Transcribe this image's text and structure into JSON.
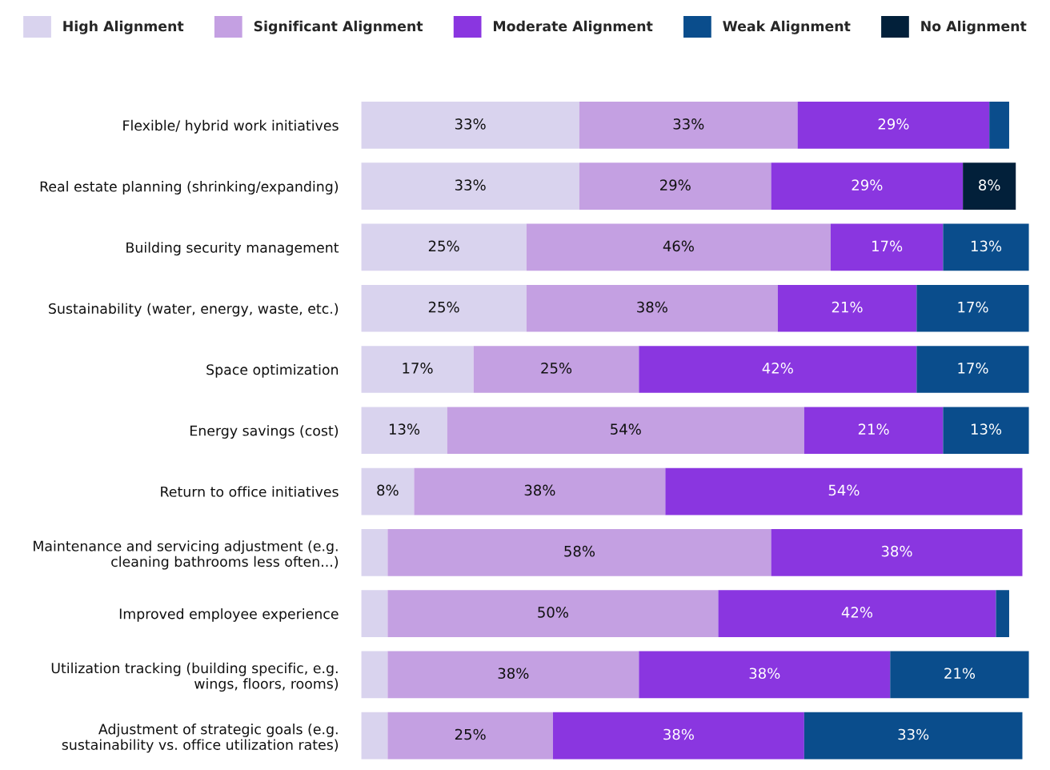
{
  "chart_data": {
    "type": "bar",
    "orientation": "horizontal",
    "stacked": true,
    "legend": "top",
    "grid": false,
    "categories": [
      "Flexible/ hybrid work initiatives",
      "Real estate planning (shrinking/expanding)",
      "Building security management",
      "Sustainability (water, energy, waste, etc.)",
      "Space optimization",
      "Energy savings (cost)",
      "Return to office initiatives",
      "Maintenance and servicing adjustment (e.g.\ncleaning bathrooms less often...)",
      "Improved employee experience",
      "Utilization tracking (building specific, e.g.\nwings, floors, rooms)",
      "Adjustment of strategic goals (e.g.\nsustainability vs. office utilization rates)"
    ],
    "series": [
      {
        "name": "High Alignment",
        "color": "#d9d3ee",
        "values": [
          33,
          33,
          25,
          25,
          17,
          13,
          8,
          4,
          4,
          4,
          4
        ],
        "value_labels": [
          "33%",
          "33%",
          "25%",
          "25%",
          "17%",
          "13%",
          "8%",
          null,
          null,
          null,
          null
        ]
      },
      {
        "name": "Significant Alignment",
        "color": "#c4a0e2",
        "values": [
          33,
          29,
          46,
          38,
          25,
          54,
          38,
          58,
          50,
          38,
          25
        ],
        "value_labels": [
          "33%",
          "29%",
          "46%",
          "38%",
          "25%",
          "54%",
          "38%",
          "58%",
          "50%",
          "38%",
          "25%"
        ]
      },
      {
        "name": "Moderate Alignment",
        "color": "#8a36e0",
        "values": [
          29,
          29,
          17,
          21,
          42,
          21,
          54,
          38,
          42,
          38,
          38
        ],
        "value_labels": [
          "29%",
          "29%",
          "17%",
          "21%",
          "42%",
          "21%",
          "54%",
          "38%",
          "42%",
          "38%",
          "38%"
        ]
      },
      {
        "name": "Weak Alignment",
        "color": "#0a4d8c",
        "values": [
          3,
          null,
          13,
          17,
          17,
          13,
          null,
          null,
          2,
          21,
          33
        ],
        "value_labels": [
          null,
          null,
          "13%",
          "17%",
          "17%",
          "13%",
          null,
          null,
          null,
          "21%",
          "33%"
        ]
      },
      {
        "name": "No Alignment",
        "color": "#02203a",
        "values": [
          null,
          8,
          null,
          null,
          null,
          null,
          null,
          null,
          null,
          null,
          null
        ],
        "value_labels": [
          null,
          "8%",
          null,
          null,
          null,
          null,
          null,
          null,
          null,
          null,
          null
        ]
      }
    ]
  }
}
